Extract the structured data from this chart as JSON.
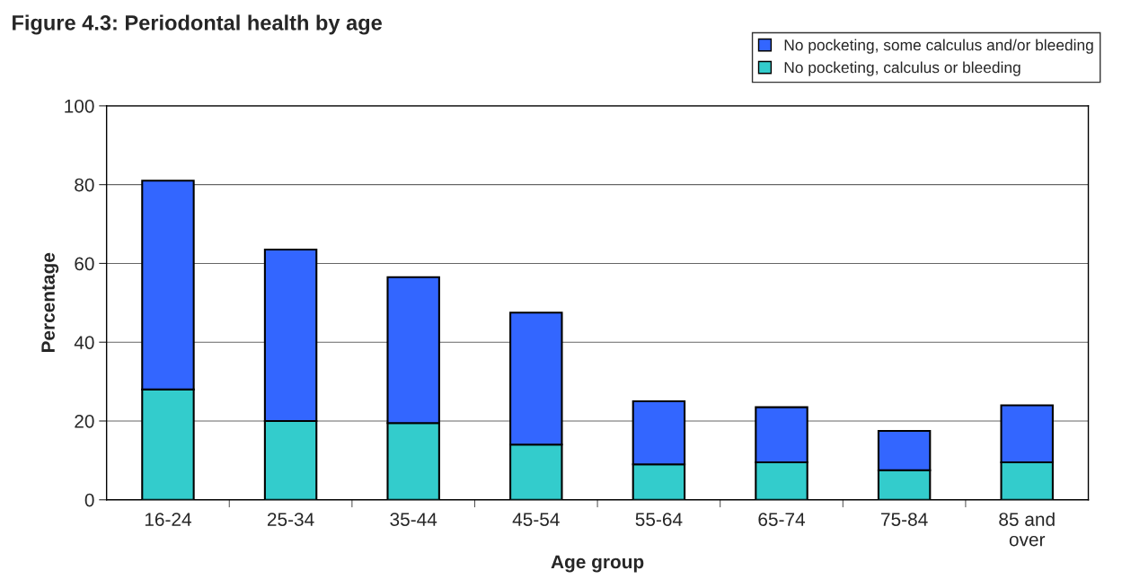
{
  "chart_data": {
    "type": "bar",
    "title": "Figure 4.3: Periodontal health by age",
    "xlabel": "Age group",
    "ylabel": "Percentage",
    "categories": [
      "16-24",
      "25-34",
      "35-44",
      "45-54",
      "55-64",
      "65-74",
      "75-84",
      "85 and\nover"
    ],
    "stacked": true,
    "series": [
      {
        "name": "No pocketing, calculus or bleeding",
        "color": "#33cccc",
        "values": [
          28,
          20,
          19.5,
          14,
          9,
          9.5,
          7.5,
          9.5
        ]
      },
      {
        "name": "No pocketing, some calculus and/or bleeding",
        "color": "#3366ff",
        "values": [
          53,
          43.5,
          37,
          33.5,
          16,
          14,
          10,
          14.5
        ]
      }
    ],
    "ylim": [
      0,
      100
    ],
    "yticks": [
      0,
      20,
      40,
      60,
      80,
      100
    ],
    "grid": "y",
    "legend": "top right"
  }
}
